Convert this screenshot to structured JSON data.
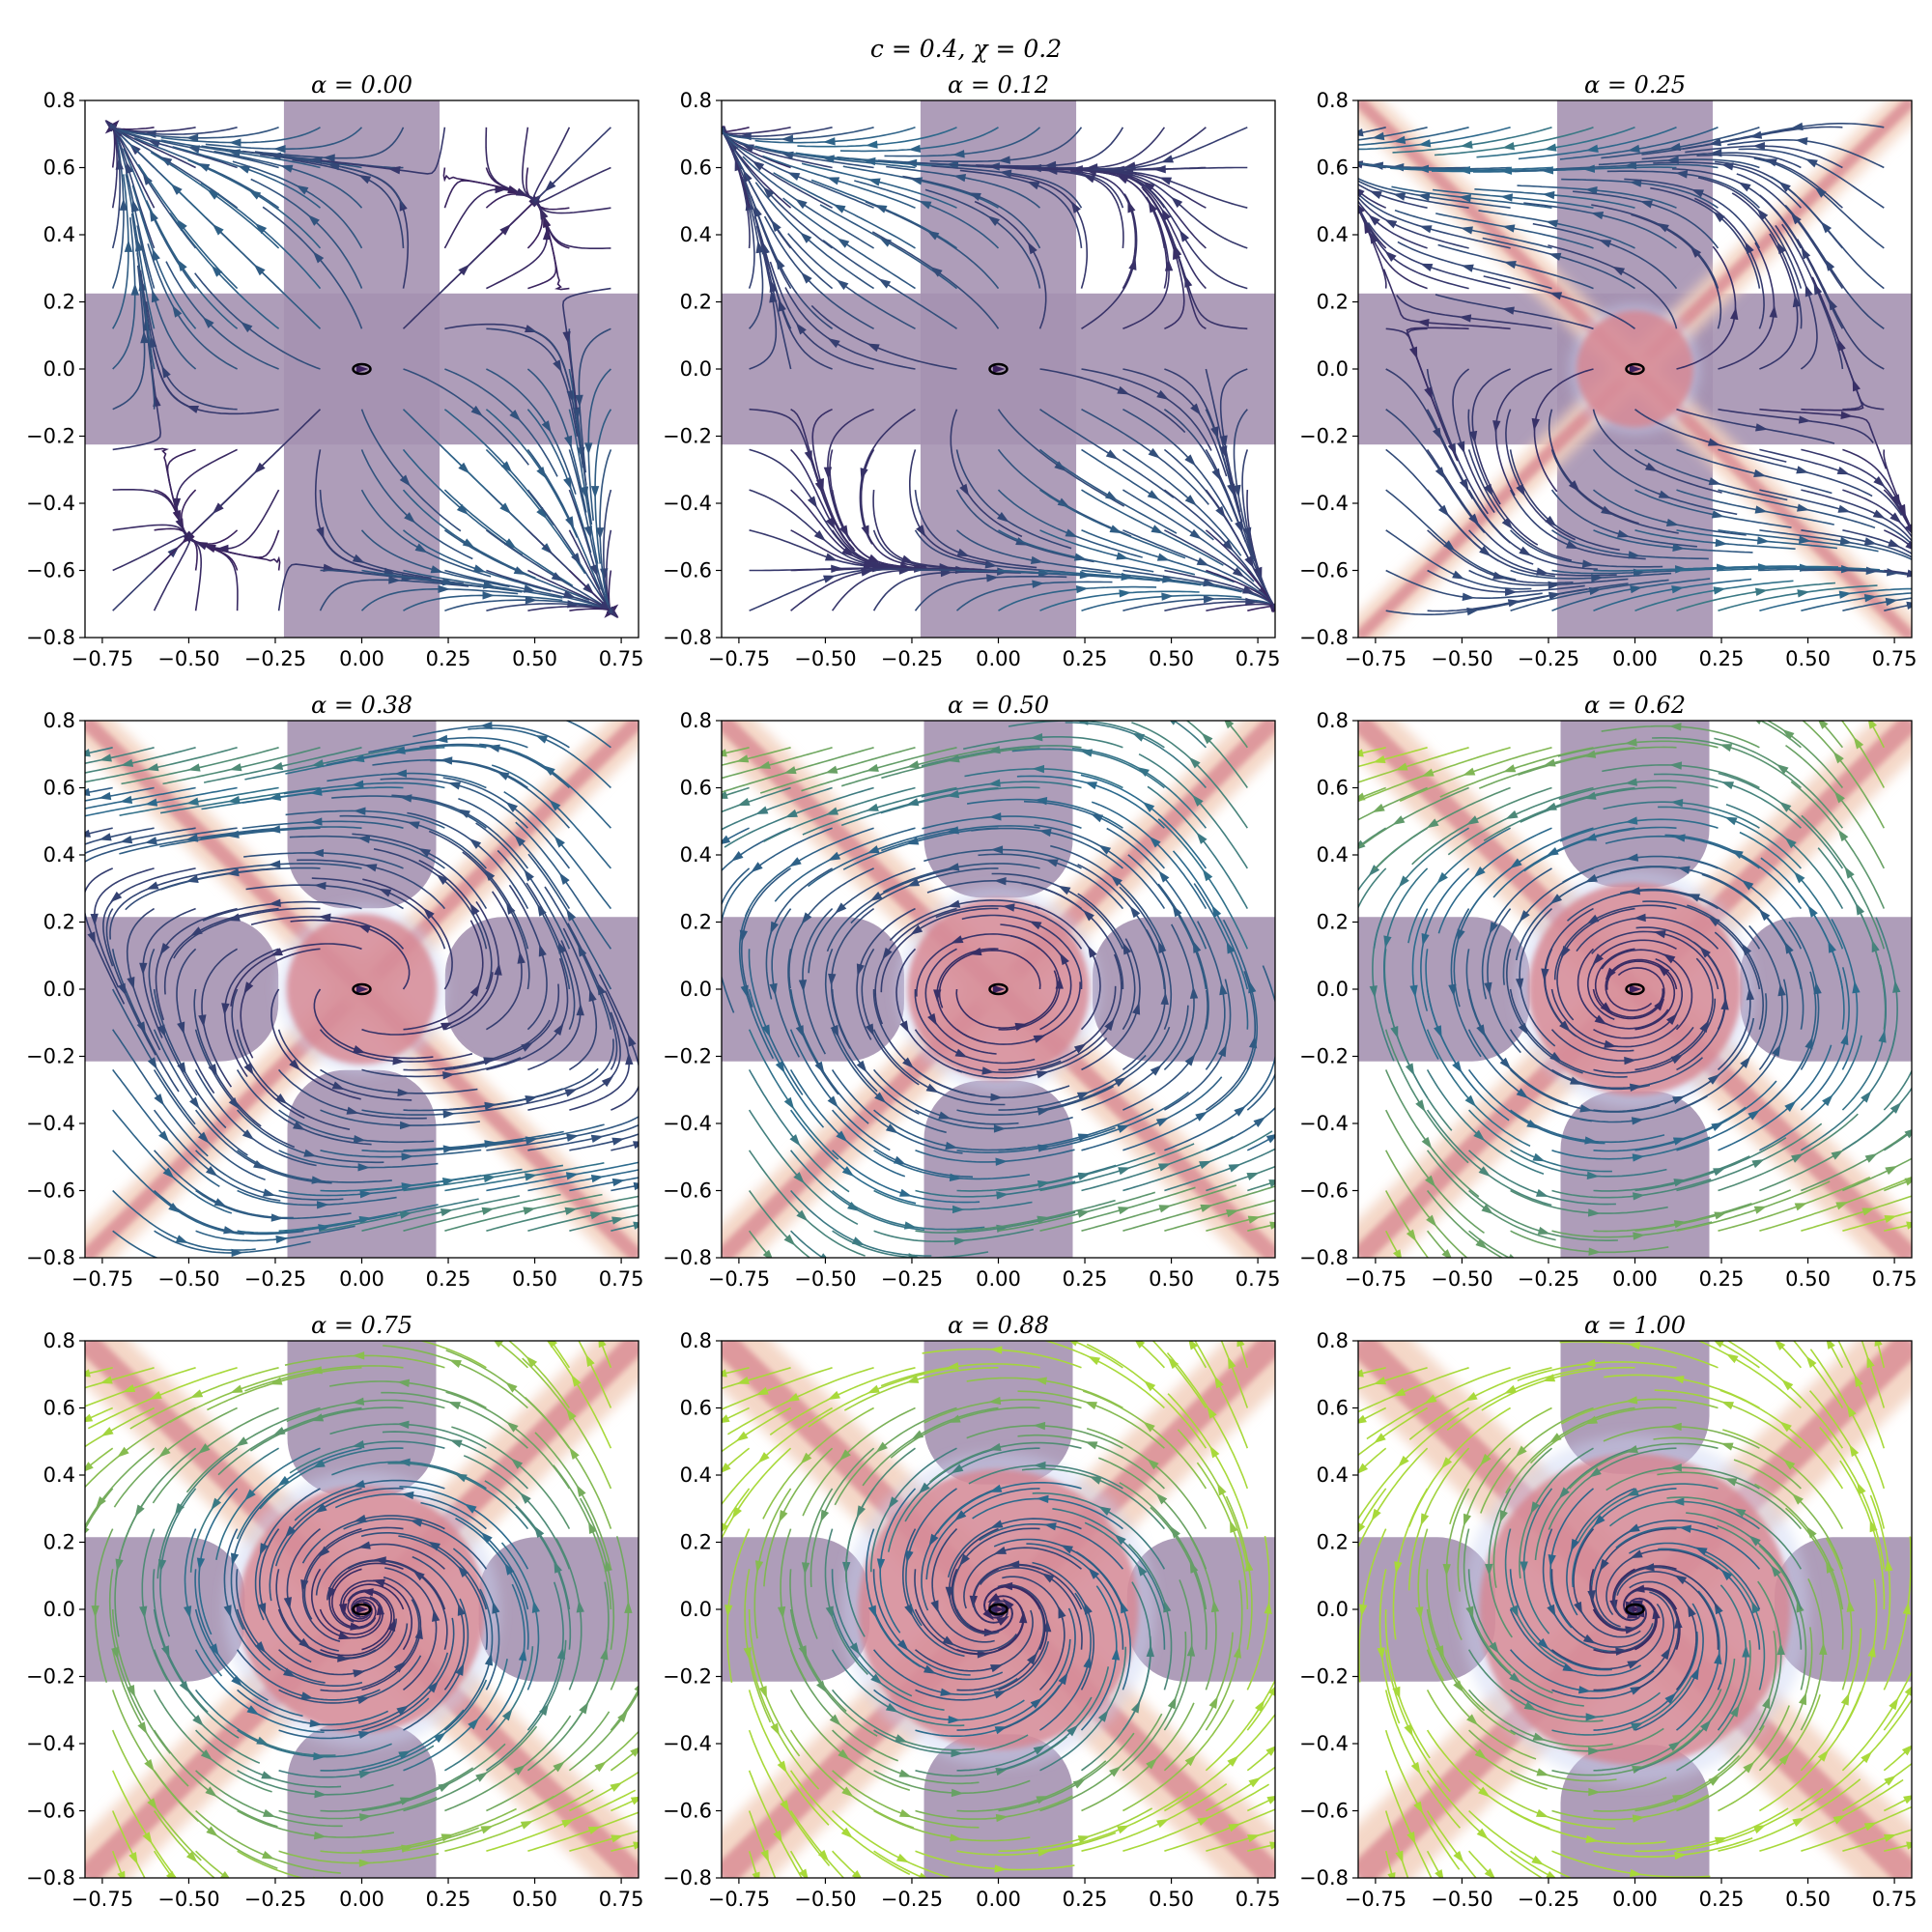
{
  "figure_title": "c = 0.4, χ = 0.2",
  "chart_data": [
    {
      "type": "streamplot",
      "title": "α = 0.00",
      "alpha": 0.0,
      "xlim": [
        -0.8,
        0.8
      ],
      "ylim": [
        -0.8,
        0.8
      ]
    },
    {
      "type": "streamplot",
      "title": "α = 0.12",
      "alpha": 0.12,
      "xlim": [
        -0.8,
        0.8
      ],
      "ylim": [
        -0.8,
        0.8
      ]
    },
    {
      "type": "streamplot",
      "title": "α = 0.25",
      "alpha": 0.25,
      "xlim": [
        -0.8,
        0.8
      ],
      "ylim": [
        -0.8,
        0.8
      ]
    },
    {
      "type": "streamplot",
      "title": "α = 0.38",
      "alpha": 0.38,
      "xlim": [
        -0.8,
        0.8
      ],
      "ylim": [
        -0.8,
        0.8
      ]
    },
    {
      "type": "streamplot",
      "title": "α = 0.50",
      "alpha": 0.5,
      "xlim": [
        -0.8,
        0.8
      ],
      "ylim": [
        -0.8,
        0.8
      ]
    },
    {
      "type": "streamplot",
      "title": "α = 0.62",
      "alpha": 0.62,
      "xlim": [
        -0.8,
        0.8
      ],
      "ylim": [
        -0.8,
        0.8
      ]
    },
    {
      "type": "streamplot",
      "title": "α = 0.75",
      "alpha": 0.75,
      "xlim": [
        -0.8,
        0.8
      ],
      "ylim": [
        -0.8,
        0.8
      ]
    },
    {
      "type": "streamplot",
      "title": "α = 0.88",
      "alpha": 0.88,
      "xlim": [
        -0.8,
        0.8
      ],
      "ylim": [
        -0.8,
        0.8
      ]
    },
    {
      "type": "streamplot",
      "title": "α = 1.00",
      "alpha": 1.0,
      "xlim": [
        -0.8,
        0.8
      ],
      "ylim": [
        -0.8,
        0.8
      ]
    }
  ],
  "x_ticks": [
    "−0.75",
    "−0.50",
    "−0.25",
    "0.00",
    "0.25",
    "0.50",
    "0.75"
  ],
  "x_tick_values": [
    -0.75,
    -0.5,
    -0.25,
    0.0,
    0.25,
    0.5,
    0.75
  ],
  "y_ticks": [
    "0.8",
    "0.6",
    "0.4",
    "0.2",
    "0.0",
    "−0.2",
    "−0.4",
    "−0.6",
    "−0.8"
  ],
  "y_tick_values": [
    0.8,
    0.6,
    0.4,
    0.2,
    0.0,
    -0.2,
    -0.4,
    -0.6,
    -0.8
  ],
  "colors": {
    "region_fill": "#a592b1",
    "band_fill": "#d7848f",
    "band_glow": "#f2d0bd",
    "halo": "#c9d3f2",
    "stream_dark": "#3b1f5c",
    "stream_mid": "#2c6c8e",
    "stream_light": "#a8d93a",
    "equilibrium": "#000000"
  }
}
